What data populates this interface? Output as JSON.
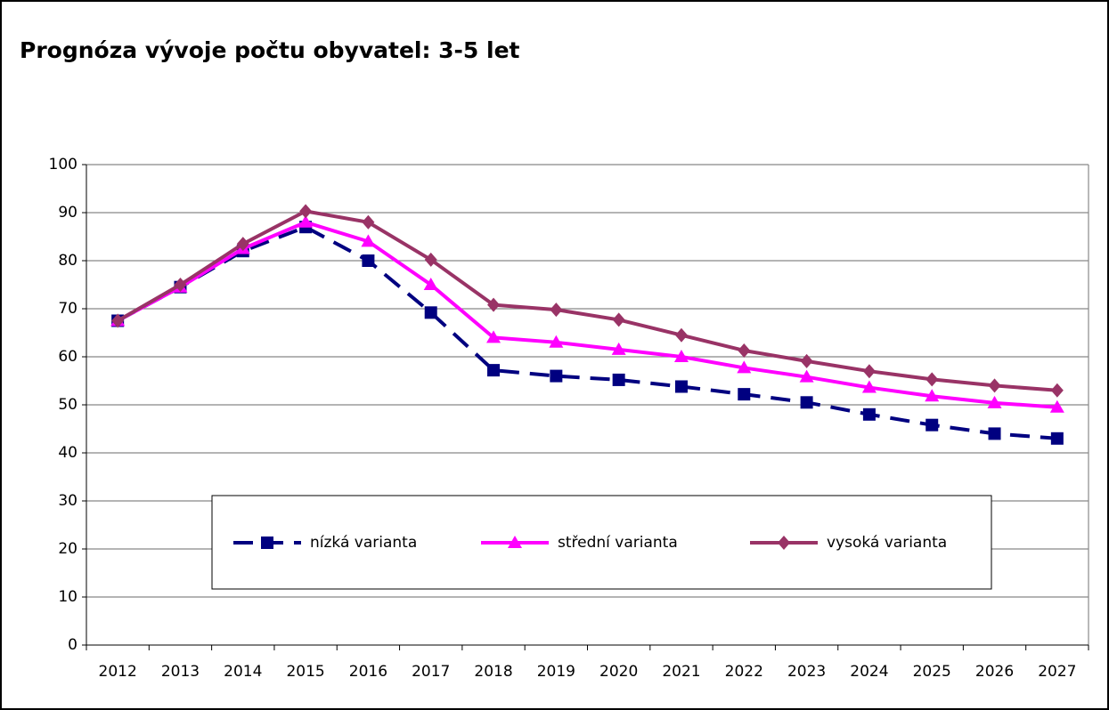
{
  "chart_data": {
    "type": "line",
    "title": "Prognóza vývoje počtu obyvatel: 3-5 let",
    "categories": [
      "2012",
      "2013",
      "2014",
      "2015",
      "2016",
      "2017",
      "2018",
      "2019",
      "2020",
      "2021",
      "2022",
      "2023",
      "2024",
      "2025",
      "2026",
      "2027"
    ],
    "series": [
      {
        "name": "nízká varianta",
        "color": "#000080",
        "dashed": true,
        "marker": "square",
        "values": [
          67.5,
          74.5,
          82,
          87,
          80,
          69.2,
          57.2,
          56,
          55.2,
          53.8,
          52.2,
          50.5,
          48,
          45.8,
          44,
          43
        ]
      },
      {
        "name": "střední varianta",
        "color": "#ff00ff",
        "dashed": false,
        "marker": "triangle",
        "values": [
          67.5,
          74.5,
          82.5,
          88,
          84,
          75,
          64,
          63,
          61.5,
          60,
          57.7,
          55.8,
          53.6,
          51.8,
          50.4,
          49.5
        ]
      },
      {
        "name": "vysoká varianta",
        "color": "#993366",
        "dashed": false,
        "marker": "diamond",
        "values": [
          67.5,
          75,
          83.5,
          90.3,
          88,
          80.2,
          70.8,
          69.8,
          67.7,
          64.5,
          61.3,
          59.1,
          57,
          55.3,
          54,
          53
        ]
      }
    ],
    "ylim": [
      0,
      100
    ],
    "yticks": [
      0,
      10,
      20,
      30,
      40,
      50,
      60,
      70,
      80,
      90,
      100
    ],
    "grid": true
  }
}
